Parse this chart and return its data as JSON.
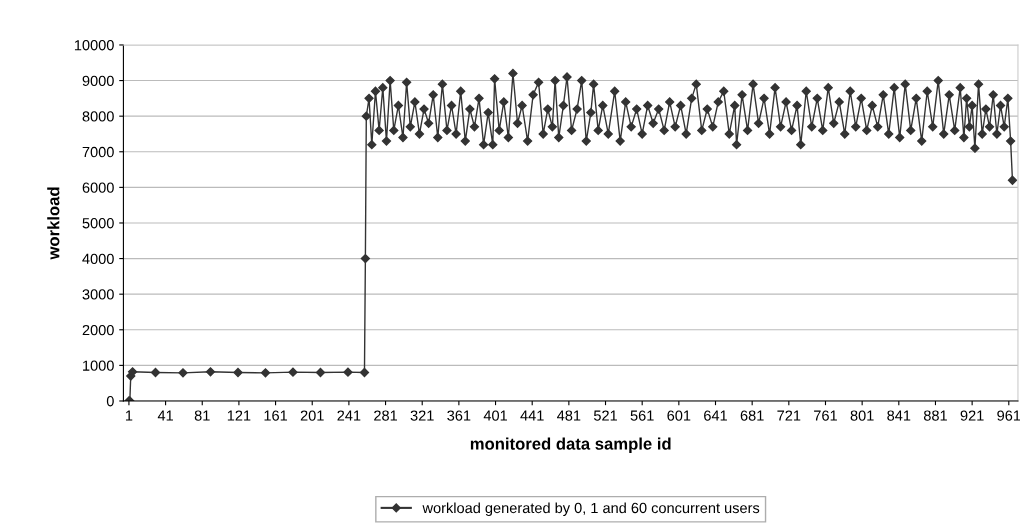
{
  "chart_data": {
    "type": "line",
    "xlabel": "monitored data sample id",
    "ylabel": "workload",
    "x": [
      1,
      2,
      3,
      5,
      30,
      60,
      90,
      120,
      150,
      180,
      210,
      240,
      258,
      259,
      260,
      263,
      266,
      270,
      274,
      278,
      282,
      286,
      290,
      295,
      300,
      304,
      308,
      313,
      318,
      323,
      328,
      333,
      338,
      343,
      348,
      353,
      358,
      363,
      368,
      373,
      378,
      383,
      388,
      393,
      398,
      400,
      405,
      410,
      415,
      420,
      425,
      430,
      436,
      442,
      448,
      453,
      458,
      463,
      466,
      470,
      475,
      479,
      484,
      490,
      495,
      500,
      505,
      508,
      513,
      518,
      524,
      531,
      537,
      543,
      549,
      555,
      561,
      567,
      573,
      579,
      585,
      591,
      597,
      603,
      609,
      615,
      620,
      626,
      632,
      638,
      644,
      650,
      656,
      662,
      664,
      670,
      676,
      682,
      688,
      694,
      700,
      706,
      712,
      718,
      724,
      730,
      734,
      740,
      746,
      752,
      758,
      764,
      770,
      776,
      782,
      788,
      794,
      800,
      806,
      812,
      818,
      824,
      830,
      836,
      842,
      848,
      854,
      860,
      866,
      872,
      878,
      884,
      890,
      896,
      902,
      908,
      912,
      915,
      918,
      921,
      924,
      928,
      932,
      936,
      940,
      944,
      948,
      952,
      956,
      960,
      963,
      965
    ],
    "series": [
      {
        "name": "workload generated by 0, 1 and 60 concurrent users",
        "color": "#333333",
        "values": [
          0,
          0,
          700,
          820,
          800,
          790,
          820,
          800,
          790,
          810,
          800,
          810,
          800,
          4000,
          8000,
          8500,
          7200,
          8700,
          7600,
          8800,
          7300,
          9000,
          7600,
          8300,
          7400,
          8950,
          7700,
          8400,
          7500,
          8200,
          7800,
          8600,
          7400,
          8900,
          7600,
          8300,
          7500,
          8700,
          7300,
          8200,
          7700,
          8500,
          7200,
          8100,
          7200,
          9050,
          7600,
          8400,
          7400,
          9200,
          7800,
          8300,
          7300,
          8600,
          8950,
          7500,
          8200,
          7700,
          9000,
          7400,
          8300,
          9100,
          7600,
          8200,
          9000,
          7300,
          8100,
          8900,
          7600,
          8300,
          7500,
          8700,
          7300,
          8400,
          7700,
          8200,
          7500,
          8300,
          7800,
          8200,
          7600,
          8400,
          7700,
          8300,
          7500,
          8500,
          8900,
          7600,
          8200,
          7700,
          8400,
          8700,
          7500,
          8300,
          7200,
          8600,
          7600,
          8900,
          7800,
          8500,
          7500,
          8800,
          7700,
          8400,
          7600,
          8300,
          7200,
          8700,
          7700,
          8500,
          7600,
          8800,
          7800,
          8400,
          7500,
          8700,
          7700,
          8500,
          7600,
          8300,
          7700,
          8600,
          7500,
          8800,
          7400,
          8900,
          7600,
          8500,
          7300,
          8700,
          7700,
          9000,
          7500,
          8600,
          7600,
          8800,
          7400,
          8500,
          7700,
          8300,
          7100,
          8900,
          7500,
          8200,
          7700,
          8600,
          7500,
          8300,
          7700,
          8500,
          7300,
          6200
        ]
      }
    ],
    "xlim": [
      -5,
      971
    ],
    "xticks": [
      1,
      41,
      81,
      121,
      161,
      201,
      241,
      281,
      321,
      361,
      401,
      441,
      481,
      521,
      561,
      601,
      641,
      681,
      721,
      761,
      801,
      841,
      881,
      921,
      961
    ],
    "ylim": [
      0,
      10000
    ],
    "yticks": [
      0,
      1000,
      2000,
      3000,
      4000,
      5000,
      6000,
      7000,
      8000,
      9000,
      10000
    ],
    "grid": "y",
    "legend": "bottom",
    "marker": "diamond",
    "line_style": "solid"
  }
}
